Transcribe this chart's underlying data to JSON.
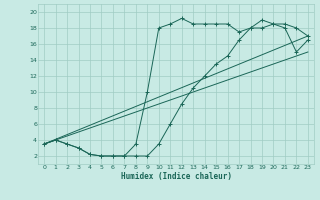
{
  "xlabel": "Humidex (Indice chaleur)",
  "ylabel": "",
  "bg_color": "#c8eae4",
  "line_color": "#1a6657",
  "grid_color": "#a0ccc4",
  "xlim": [
    -0.5,
    23.5
  ],
  "ylim": [
    1,
    21
  ],
  "xticks": [
    0,
    1,
    2,
    3,
    4,
    5,
    6,
    7,
    8,
    9,
    10,
    11,
    12,
    13,
    14,
    15,
    16,
    17,
    18,
    19,
    20,
    21,
    22,
    23
  ],
  "yticks": [
    2,
    4,
    6,
    8,
    10,
    12,
    14,
    16,
    18,
    20
  ],
  "curve1_x": [
    0,
    1,
    2,
    3,
    4,
    5,
    6,
    7,
    8,
    9,
    10,
    11,
    12,
    13,
    14,
    15,
    16,
    17,
    18,
    19,
    20,
    21,
    22,
    23
  ],
  "curve1_y": [
    3.5,
    4.0,
    3.5,
    3.0,
    2.2,
    2.0,
    2.0,
    2.0,
    3.5,
    10.0,
    18.0,
    18.5,
    19.2,
    18.5,
    18.5,
    18.5,
    18.5,
    17.5,
    18.0,
    19.0,
    18.5,
    18.5,
    18.0,
    17.0
  ],
  "curve2_x": [
    0,
    1,
    2,
    3,
    4,
    5,
    6,
    7,
    8,
    9,
    10,
    11,
    12,
    13,
    14,
    15,
    16,
    17,
    18,
    19,
    20,
    21,
    22,
    23
  ],
  "curve2_y": [
    3.5,
    4.0,
    3.5,
    3.0,
    2.2,
    2.0,
    2.0,
    2.0,
    2.0,
    2.0,
    3.5,
    6.0,
    8.5,
    10.5,
    12.0,
    13.5,
    14.5,
    16.5,
    18.0,
    18.0,
    18.5,
    18.0,
    15.0,
    16.5
  ],
  "line1_x": [
    0,
    23
  ],
  "line1_y": [
    3.5,
    17.0
  ],
  "line2_x": [
    0,
    23
  ],
  "line2_y": [
    3.5,
    15.0
  ]
}
